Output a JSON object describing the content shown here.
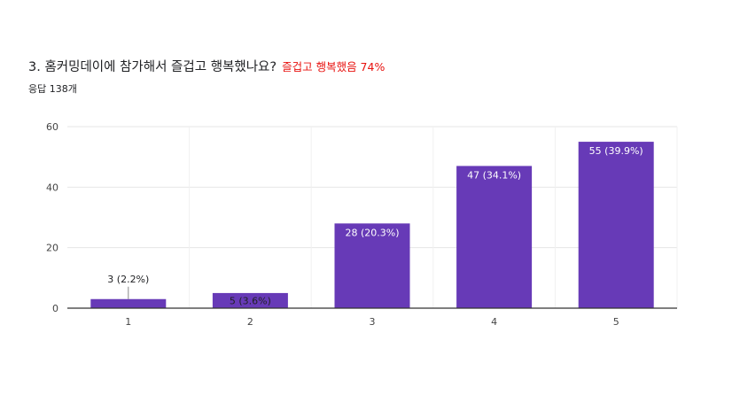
{
  "header": {
    "question": "3. 홈커밍데이에 참가해서 즐겁고 행복했나요?",
    "highlight": "즐겁고 행복했음 74%",
    "responses": "응답 138개"
  },
  "colors": {
    "bar": "#673ab7",
    "highlight": "#e8110e",
    "grid": "#e6e6e6",
    "axis": "#333333"
  },
  "chart_data": {
    "type": "bar",
    "categories": [
      "1",
      "2",
      "3",
      "4",
      "5"
    ],
    "values": [
      3,
      5,
      28,
      47,
      55
    ],
    "data_labels": [
      "3 (2.2%)",
      "5 (3.6%)",
      "28 (20.3%)",
      "47 (34.1%)",
      "55 (39.9%)"
    ],
    "yticks": [
      "0",
      "20",
      "40",
      "60"
    ],
    "ylim": [
      0,
      60
    ],
    "grid": true,
    "legend": "none",
    "title": "",
    "xlabel": "",
    "ylabel": ""
  }
}
